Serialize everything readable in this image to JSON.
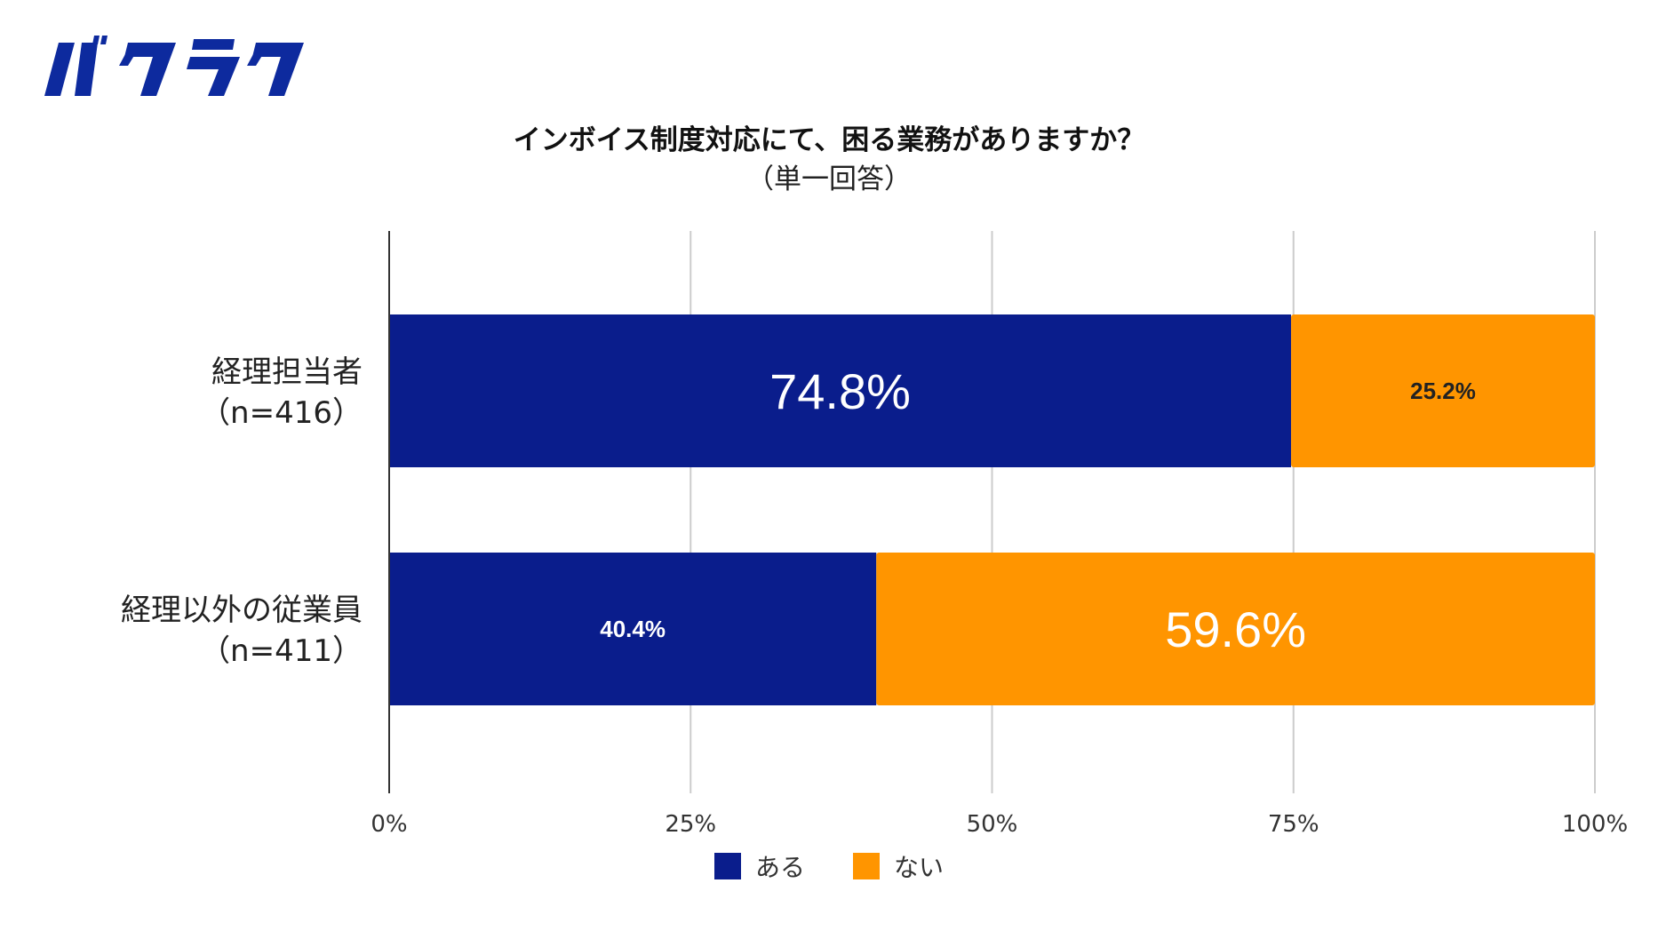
{
  "logo": {
    "text": "バクラク",
    "color": "#0d2a9e"
  },
  "chart_data": {
    "type": "bar",
    "orientation": "horizontal",
    "stacked": true,
    "title": "インボイス制度対応にて、困る業務がありますか？",
    "subtitle": "（単一回答）",
    "categories": [
      [
        "経理担当者",
        "（n=416）"
      ],
      [
        "経理以外の従業員",
        "（n=411）"
      ]
    ],
    "series": [
      {
        "name": "ある",
        "color": "#0a1d8c",
        "values": [
          74.8,
          40.4
        ],
        "labels": [
          "74.8%",
          "40.4%"
        ]
      },
      {
        "name": "ない",
        "color": "#ff9500",
        "values": [
          25.2,
          59.6
        ],
        "labels": [
          "25.2%",
          "59.6%"
        ]
      }
    ],
    "xlim": [
      0,
      100
    ],
    "xticks": [
      "0%",
      "25%",
      "50%",
      "75%",
      "100%"
    ],
    "grid": true,
    "legend": "bottom",
    "label_colors": {
      "ある": "#ffffff",
      "ない_small": "#222222",
      "ない_large": "#ffffff"
    },
    "emphasized_labels": [
      "74.8%",
      "59.6%"
    ]
  }
}
